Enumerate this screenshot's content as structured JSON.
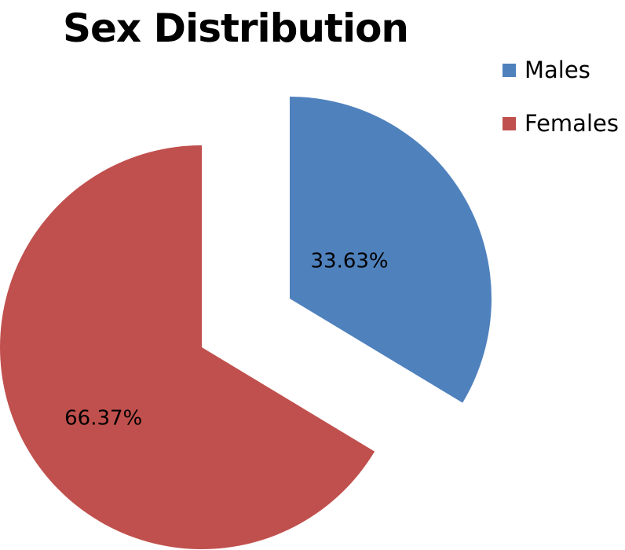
{
  "chart_data": {
    "type": "pie",
    "title": "Sex Distribution",
    "slices": [
      {
        "name": "Males",
        "value": 33.63,
        "label": "33.63%",
        "color": "#4f81bd",
        "exploded": true
      },
      {
        "name": "Females",
        "value": 66.37,
        "label": "66.37%",
        "color": "#c0504d",
        "exploded": false
      }
    ],
    "legend": {
      "position": "top-right",
      "entries": [
        "Males",
        "Females"
      ]
    },
    "start_angle": "12 o'clock",
    "direction": "clockwise"
  }
}
